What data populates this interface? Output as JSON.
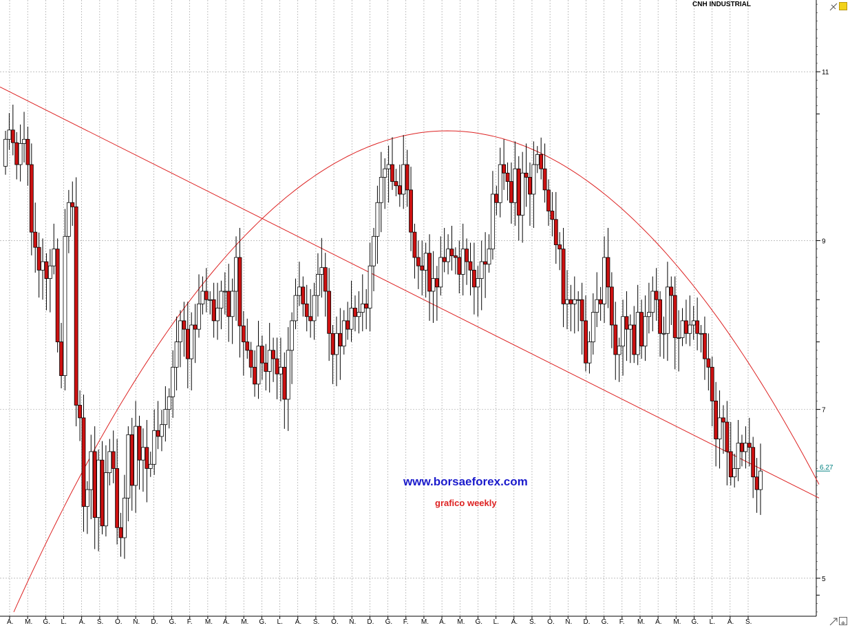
{
  "header": {
    "ticker": "CNH INDUSTRIAL"
  },
  "watermark": {
    "site": "www.borsaeforex.com",
    "subtitle": "grafico weekly"
  },
  "colors": {
    "up_candle": "#ffffff",
    "down_candle": "#cc1111",
    "trendline": "#dd2222",
    "grid": "#9a9a9a",
    "site_text": "#1a1acc",
    "subtitle_text": "#dd2222",
    "last_price": "#008080"
  },
  "icons": {
    "top_right": "crosshair-icon",
    "corner_badge": "yellow-lock-icon",
    "bottom_right": "scroll-arrows-icon"
  },
  "chart_data": {
    "type": "candlestick",
    "title": "CNH INDUSTRIAL",
    "period": "weekly",
    "ylim": [
      4.55,
      11.85
    ],
    "y_ticks": [
      {
        "value": 11,
        "label": "11"
      },
      {
        "value": 9,
        "label": "9"
      },
      {
        "value": 7,
        "label": "7"
      },
      {
        "value": 5,
        "label": "5"
      }
    ],
    "last_price": {
      "value": 6.27,
      "label": "6.27"
    },
    "x_labels": [
      "A.",
      "M.",
      "G.",
      "L.",
      "A.",
      "S.",
      "O.",
      "N.",
      "D.",
      "G.",
      "F.",
      "M.",
      "A.",
      "M.",
      "G.",
      "L.",
      "A.",
      "S.",
      "O.",
      "N.",
      "D.",
      "G.",
      "F.",
      "M.",
      "A.",
      "M.",
      "G.",
      "L.",
      "A.",
      "S.",
      "O.",
      "N.",
      "D.",
      "G.",
      "F.",
      "M.",
      "A.",
      "M.",
      "G.",
      "L.",
      "A.",
      "S."
    ],
    "grid": true,
    "candles": {
      "open": [
        9.88,
        10.2,
        10.31,
        10.16,
        9.9,
        10.15,
        10.2,
        9.9,
        9.1,
        8.92,
        8.65,
        8.75,
        8.55,
        8.7,
        8.9,
        7.8,
        7.4,
        9.05,
        9.45,
        9.4,
        7.05,
        6.9,
        5.85,
        6.05,
        6.5,
        5.72,
        6.4,
        5.62,
        6.25,
        6.5,
        6.3,
        5.6,
        5.48,
        5.95,
        6.7,
        6.1,
        6.8,
        6.4,
        6.55,
        6.3,
        6.35,
        6.75,
        6.68,
        6.82,
        7.0,
        7.15,
        7.5,
        7.8,
        8.05,
        7.95,
        7.6,
        8.0,
        7.95,
        8.25,
        8.4,
        8.3,
        8.3,
        8.05,
        8.2,
        8.4,
        8.4,
        8.1,
        8.4,
        8.8,
        7.99,
        7.8,
        7.7,
        7.5,
        7.3,
        7.75,
        7.55,
        7.45,
        7.7,
        7.6,
        7.42,
        7.5,
        7.12,
        7.7,
        8.05,
        8.35,
        8.45,
        8.25,
        8.1,
        8.05,
        8.35,
        8.6,
        8.68,
        8.4,
        7.9,
        7.65,
        7.9,
        7.75,
        8.05,
        7.95,
        8.2,
        8.1,
        8.15,
        8.25,
        8.2,
        8.7,
        9.05,
        9.45,
        9.75,
        9.85,
        9.9,
        9.7,
        9.65,
        9.55,
        9.9,
        9.6,
        9.1,
        8.8,
        8.7,
        8.65,
        8.85,
        8.4,
        8.55,
        8.45,
        8.8,
        8.75,
        8.9,
        8.82,
        8.8,
        8.6,
        8.9,
        8.75,
        8.65,
        8.45,
        8.55,
        8.75,
        8.72,
        8.9,
        9.55,
        9.45,
        9.9,
        9.8,
        9.7,
        9.45,
        9.85,
        9.3,
        9.8,
        9.75,
        9.55,
        9.9,
        10.02,
        9.85,
        9.6,
        9.35,
        9.25,
        8.95,
        8.9,
        8.25,
        8.3,
        8.25,
        8.3,
        8.3,
        8.05,
        7.55,
        7.8,
        8.15,
        8.3,
        8.25,
        8.8,
        8.45,
        8.0,
        7.65,
        7.75,
        8.1,
        7.95,
        8.0,
        7.65,
        8.15,
        7.75,
        8.1,
        8.15,
        8.4,
        8.3,
        7.9,
        7.9,
        8.45,
        8.35,
        7.85,
        7.85,
        8.05,
        7.9,
        8.0,
        8.05,
        7.9,
        7.9,
        7.6,
        7.5,
        7.1,
        6.65,
        6.9,
        6.85,
        6.5,
        6.2,
        6.3,
        6.6,
        6.5,
        6.6,
        6.55,
        6.2,
        6.05
      ]
    },
    "annotations": [
      {
        "type": "line",
        "label": "falling trendline"
      },
      {
        "type": "curve",
        "label": "arc"
      }
    ]
  }
}
